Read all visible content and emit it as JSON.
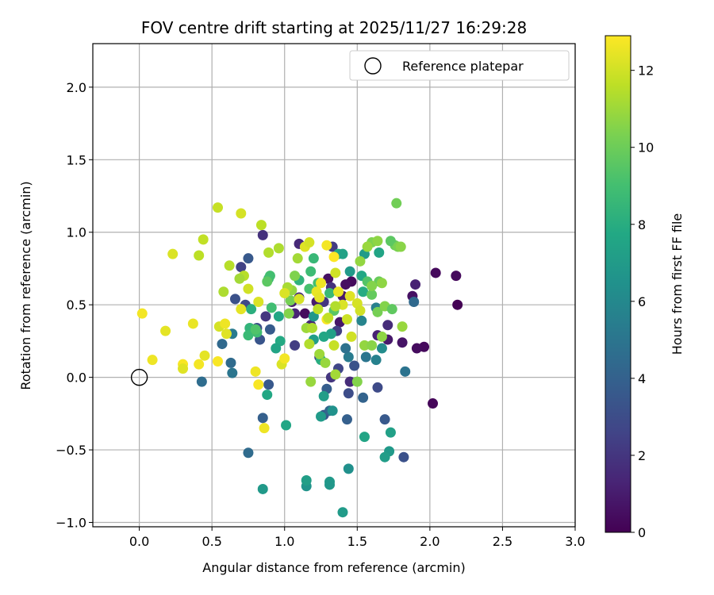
{
  "chart_data": {
    "type": "scatter",
    "title": "FOV centre drift starting at 2025/11/27 16:29:28",
    "xlabel": "Angular distance from reference (arcmin)",
    "ylabel": "Rotation from reference (arcmin)",
    "xlim": [
      -0.32,
      3.0
    ],
    "ylim": [
      -1.03,
      2.3
    ],
    "xticks": [
      0.0,
      0.5,
      1.0,
      1.5,
      2.0,
      2.5,
      3.0
    ],
    "xtick_labels": [
      "0.0",
      "0.5",
      "1.0",
      "1.5",
      "2.0",
      "2.5",
      "3.0"
    ],
    "yticks": [
      -1.0,
      -0.5,
      0.0,
      0.5,
      1.0,
      1.5,
      2.0
    ],
    "ytick_labels": [
      "−1.0",
      "−0.5",
      "0.0",
      "0.5",
      "1.0",
      "1.5",
      "2.0"
    ],
    "grid": true,
    "legend": {
      "placement": "top-right",
      "entries": [
        "Reference platepar"
      ]
    },
    "reference_point": {
      "name": "Reference platepar",
      "x": 0.0,
      "y": 0.0,
      "marker": "open-circle"
    },
    "colorbar": {
      "label": "Hours from first FF file",
      "colormap": "viridis",
      "range": [
        0,
        12.9
      ],
      "ticks": [
        0,
        2,
        4,
        6,
        8,
        10,
        12
      ],
      "tick_labels": [
        "0",
        "2",
        "4",
        "6",
        "8",
        "10",
        "12"
      ]
    },
    "points_note_format": "[x, y, hours]",
    "points": [
      [
        2.19,
        0.5,
        0.05
      ],
      [
        2.18,
        0.7,
        0.3
      ],
      [
        2.04,
        0.72,
        0.3
      ],
      [
        2.02,
        -0.18,
        0.2
      ],
      [
        1.96,
        0.21,
        0.3
      ],
      [
        1.91,
        0.2,
        0.4
      ],
      [
        1.88,
        0.56,
        0.6
      ],
      [
        1.9,
        0.64,
        1.2
      ],
      [
        1.81,
        0.24,
        0.7
      ],
      [
        1.71,
        0.26,
        0.9
      ],
      [
        1.71,
        0.36,
        1.6
      ],
      [
        1.64,
        0.29,
        1.2
      ],
      [
        1.46,
        0.66,
        0.3
      ],
      [
        1.42,
        0.64,
        0.5
      ],
      [
        1.4,
        0.56,
        0.9
      ],
      [
        1.38,
        0.38,
        0.8
      ],
      [
        1.3,
        0.68,
        0.6
      ],
      [
        1.22,
        0.52,
        1.0
      ],
      [
        1.18,
        0.36,
        1.4
      ],
      [
        1.1,
        0.55,
        1.7
      ],
      [
        1.1,
        0.92,
        1.5
      ],
      [
        1.14,
        0.44,
        0.4
      ],
      [
        1.05,
        0.52,
        1.1
      ],
      [
        1.07,
        0.44,
        1.3
      ],
      [
        1.27,
        0.52,
        2.0
      ],
      [
        1.32,
        0.62,
        1.8
      ],
      [
        1.33,
        0.9,
        2.2
      ],
      [
        1.36,
        0.32,
        2.4
      ],
      [
        1.24,
        0.14,
        2.6
      ],
      [
        1.07,
        0.22,
        2.3
      ],
      [
        0.85,
        0.98,
        1.8
      ],
      [
        0.87,
        0.42,
        2.1
      ],
      [
        0.7,
        0.76,
        2.5
      ],
      [
        0.73,
        0.5,
        2.8
      ],
      [
        0.66,
        0.54,
        3.2
      ],
      [
        0.75,
        0.82,
        3.6
      ],
      [
        0.81,
        0.34,
        3.1
      ],
      [
        0.83,
        0.26,
        3.4
      ],
      [
        0.9,
        0.33,
        3.7
      ],
      [
        1.32,
        0.0,
        2.0
      ],
      [
        1.37,
        0.06,
        2.7
      ],
      [
        1.45,
        -0.03,
        1.6
      ],
      [
        1.48,
        0.08,
        3.3
      ],
      [
        1.64,
        -0.07,
        2.9
      ],
      [
        1.44,
        -0.11,
        3.0
      ],
      [
        1.29,
        -0.08,
        3.8
      ],
      [
        1.27,
        -0.26,
        3.5
      ],
      [
        1.31,
        -0.23,
        4.3
      ],
      [
        1.43,
        -0.29,
        3.9
      ],
      [
        1.54,
        -0.14,
        4.1
      ],
      [
        1.69,
        -0.29,
        3.6
      ],
      [
        1.82,
        -0.55,
        3.2
      ],
      [
        1.83,
        0.04,
        4.9
      ],
      [
        1.89,
        0.52,
        4.4
      ],
      [
        0.89,
        -0.05,
        3.6
      ],
      [
        0.85,
        -0.28,
        3.9
      ],
      [
        0.75,
        -0.52,
        4.5
      ],
      [
        0.43,
        -0.03,
        4.6
      ],
      [
        0.63,
        0.1,
        4.5
      ],
      [
        0.64,
        0.03,
        5.0
      ],
      [
        0.57,
        0.23,
        4.4
      ],
      [
        0.64,
        0.3,
        5.3
      ],
      [
        1.63,
        0.12,
        5.6
      ],
      [
        1.67,
        0.2,
        6.2
      ],
      [
        1.56,
        0.14,
        5.0
      ],
      [
        1.44,
        0.14,
        5.3
      ],
      [
        1.42,
        0.2,
        4.8
      ],
      [
        1.53,
        0.39,
        5.8
      ],
      [
        1.63,
        0.48,
        5.5
      ],
      [
        1.4,
        -0.93,
        7.0
      ],
      [
        1.44,
        -0.63,
        6.4
      ],
      [
        1.55,
        -0.41,
        7.5
      ],
      [
        1.72,
        -0.51,
        6.9
      ],
      [
        1.69,
        -0.55,
        7.1
      ],
      [
        1.73,
        -0.38,
        7.3
      ],
      [
        1.31,
        -0.72,
        6.9
      ],
      [
        1.31,
        -0.74,
        6.8
      ],
      [
        1.15,
        -0.75,
        6.6
      ],
      [
        1.15,
        -0.71,
        7.2
      ],
      [
        0.85,
        -0.77,
        6.9
      ],
      [
        1.01,
        -0.33,
        7.6
      ],
      [
        0.88,
        -0.12,
        7.7
      ],
      [
        1.27,
        -0.13,
        7.1
      ],
      [
        1.25,
        -0.27,
        7.0
      ],
      [
        1.33,
        -0.23,
        6.5
      ],
      [
        1.2,
        0.26,
        7.2
      ],
      [
        1.2,
        0.42,
        6.8
      ],
      [
        1.25,
        0.12,
        8.0
      ],
      [
        1.32,
        0.3,
        7.3
      ],
      [
        1.27,
        0.28,
        7.6
      ],
      [
        1.37,
        0.85,
        7.8
      ],
      [
        1.4,
        0.85,
        7.4
      ],
      [
        1.55,
        0.85,
        7.0
      ],
      [
        1.65,
        0.86,
        7.5
      ],
      [
        1.45,
        0.73,
        6.9
      ],
      [
        1.53,
        0.7,
        7.7
      ],
      [
        1.54,
        0.59,
        7.9
      ],
      [
        0.96,
        0.42,
        7.6
      ],
      [
        0.97,
        0.25,
        7.8
      ],
      [
        0.94,
        0.2,
        7.5
      ],
      [
        0.77,
        0.47,
        8.1
      ],
      [
        0.76,
        0.34,
        8.4
      ],
      [
        0.75,
        0.29,
        8.7
      ],
      [
        0.81,
        0.31,
        8.9
      ],
      [
        0.8,
        0.33,
        9.3
      ],
      [
        0.89,
        0.68,
        8.5
      ],
      [
        0.9,
        0.7,
        9.0
      ],
      [
        0.88,
        0.66,
        9.6
      ],
      [
        0.91,
        0.48,
        8.9
      ],
      [
        1.1,
        0.67,
        8.3
      ],
      [
        1.18,
        0.73,
        8.8
      ],
      [
        1.17,
        0.61,
        9.1
      ],
      [
        1.2,
        0.82,
        8.6
      ],
      [
        1.23,
        0.65,
        9.0
      ],
      [
        1.34,
        0.46,
        9.5
      ],
      [
        1.31,
        0.58,
        8.7
      ],
      [
        1.57,
        0.66,
        9.4
      ],
      [
        1.6,
        0.57,
        9.8
      ],
      [
        1.65,
        0.66,
        9.9
      ],
      [
        1.64,
        0.45,
        10.2
      ],
      [
        1.6,
        0.63,
        10.5
      ],
      [
        1.67,
        0.65,
        10.7
      ],
      [
        1.69,
        0.49,
        10.5
      ],
      [
        1.74,
        0.47,
        9.7
      ],
      [
        1.76,
        0.91,
        10.0
      ],
      [
        1.73,
        0.94,
        9.6
      ],
      [
        1.78,
        0.9,
        10.3
      ],
      [
        1.8,
        0.9,
        10.6
      ],
      [
        1.77,
        1.2,
        10.1
      ],
      [
        1.6,
        0.93,
        10.4
      ],
      [
        1.64,
        0.94,
        10.7
      ],
      [
        1.57,
        0.9,
        10.9
      ],
      [
        1.52,
        0.8,
        10.8
      ],
      [
        1.81,
        0.35,
        10.9
      ],
      [
        1.55,
        0.22,
        10.8
      ],
      [
        1.6,
        0.22,
        10.6
      ],
      [
        1.67,
        0.28,
        10.7
      ],
      [
        1.5,
        -0.03,
        10.5
      ],
      [
        1.35,
        0.02,
        11.1
      ],
      [
        1.18,
        -0.03,
        10.9
      ],
      [
        1.28,
        0.1,
        10.9
      ],
      [
        1.24,
        0.16,
        11.0
      ],
      [
        1.17,
        0.23,
        11.4
      ],
      [
        1.15,
        0.34,
        11.0
      ],
      [
        1.19,
        0.34,
        11.3
      ],
      [
        1.03,
        0.44,
        10.5
      ],
      [
        1.04,
        0.53,
        10.2
      ],
      [
        1.05,
        0.6,
        10.8
      ],
      [
        1.02,
        0.62,
        11.2
      ],
      [
        1.07,
        0.7,
        10.4
      ],
      [
        1.09,
        0.82,
        11.1
      ],
      [
        0.96,
        0.89,
        11.3
      ],
      [
        0.89,
        0.86,
        11.4
      ],
      [
        0.84,
        1.05,
        11.6
      ],
      [
        0.72,
        0.7,
        11.5
      ],
      [
        0.69,
        0.68,
        11.1
      ],
      [
        0.62,
        0.77,
        11.5
      ],
      [
        0.58,
        0.59,
        11.3
      ],
      [
        0.54,
        1.17,
        11.8
      ],
      [
        0.44,
        0.95,
        11.7
      ],
      [
        0.41,
        0.84,
        11.6
      ],
      [
        0.23,
        0.85,
        12.2
      ],
      [
        0.7,
        1.13,
        12.1
      ],
      [
        0.75,
        0.61,
        12.0
      ],
      [
        0.82,
        0.52,
        12.2
      ],
      [
        0.7,
        0.47,
        12.4
      ],
      [
        0.55,
        0.35,
        12.1
      ],
      [
        0.59,
        0.37,
        12.6
      ],
      [
        0.6,
        0.3,
        12.3
      ],
      [
        0.45,
        0.15,
        12.4
      ],
      [
        0.54,
        0.11,
        12.8
      ],
      [
        0.37,
        0.37,
        12.5
      ],
      [
        0.41,
        0.09,
        12.7
      ],
      [
        0.3,
        0.09,
        12.8
      ],
      [
        0.3,
        0.06,
        12.3
      ],
      [
        0.18,
        0.32,
        12.4
      ],
      [
        0.09,
        0.12,
        12.6
      ],
      [
        0.02,
        0.44,
        12.7
      ],
      [
        0.8,
        0.04,
        12.6
      ],
      [
        0.82,
        -0.05,
        12.8
      ],
      [
        0.86,
        -0.35,
        12.6
      ],
      [
        0.98,
        0.09,
        12.2
      ],
      [
        1.0,
        0.13,
        12.7
      ],
      [
        1.0,
        0.58,
        12.2
      ],
      [
        1.1,
        0.54,
        12.1
      ],
      [
        1.14,
        0.9,
        12.3
      ],
      [
        1.17,
        0.93,
        12.1
      ],
      [
        1.22,
        0.59,
        12.5
      ],
      [
        1.24,
        0.55,
        12.4
      ],
      [
        1.29,
        0.4,
        12.8
      ],
      [
        1.29,
        0.91,
        12.7
      ],
      [
        1.34,
        0.83,
        12.9
      ],
      [
        1.35,
        0.72,
        12.0
      ],
      [
        1.37,
        0.59,
        12.5
      ],
      [
        1.4,
        0.5,
        12.2
      ],
      [
        1.25,
        0.65,
        12.6
      ],
      [
        1.45,
        0.56,
        12.3
      ],
      [
        1.5,
        0.51,
        12.1
      ],
      [
        1.52,
        0.46,
        12.0
      ],
      [
        1.43,
        0.4,
        11.9
      ],
      [
        1.46,
        0.28,
        12.0
      ],
      [
        1.34,
        0.22,
        11.8
      ],
      [
        1.23,
        0.47,
        11.6
      ],
      [
        1.3,
        0.41,
        11.7
      ],
      [
        1.35,
        0.49,
        11.4
      ]
    ]
  }
}
